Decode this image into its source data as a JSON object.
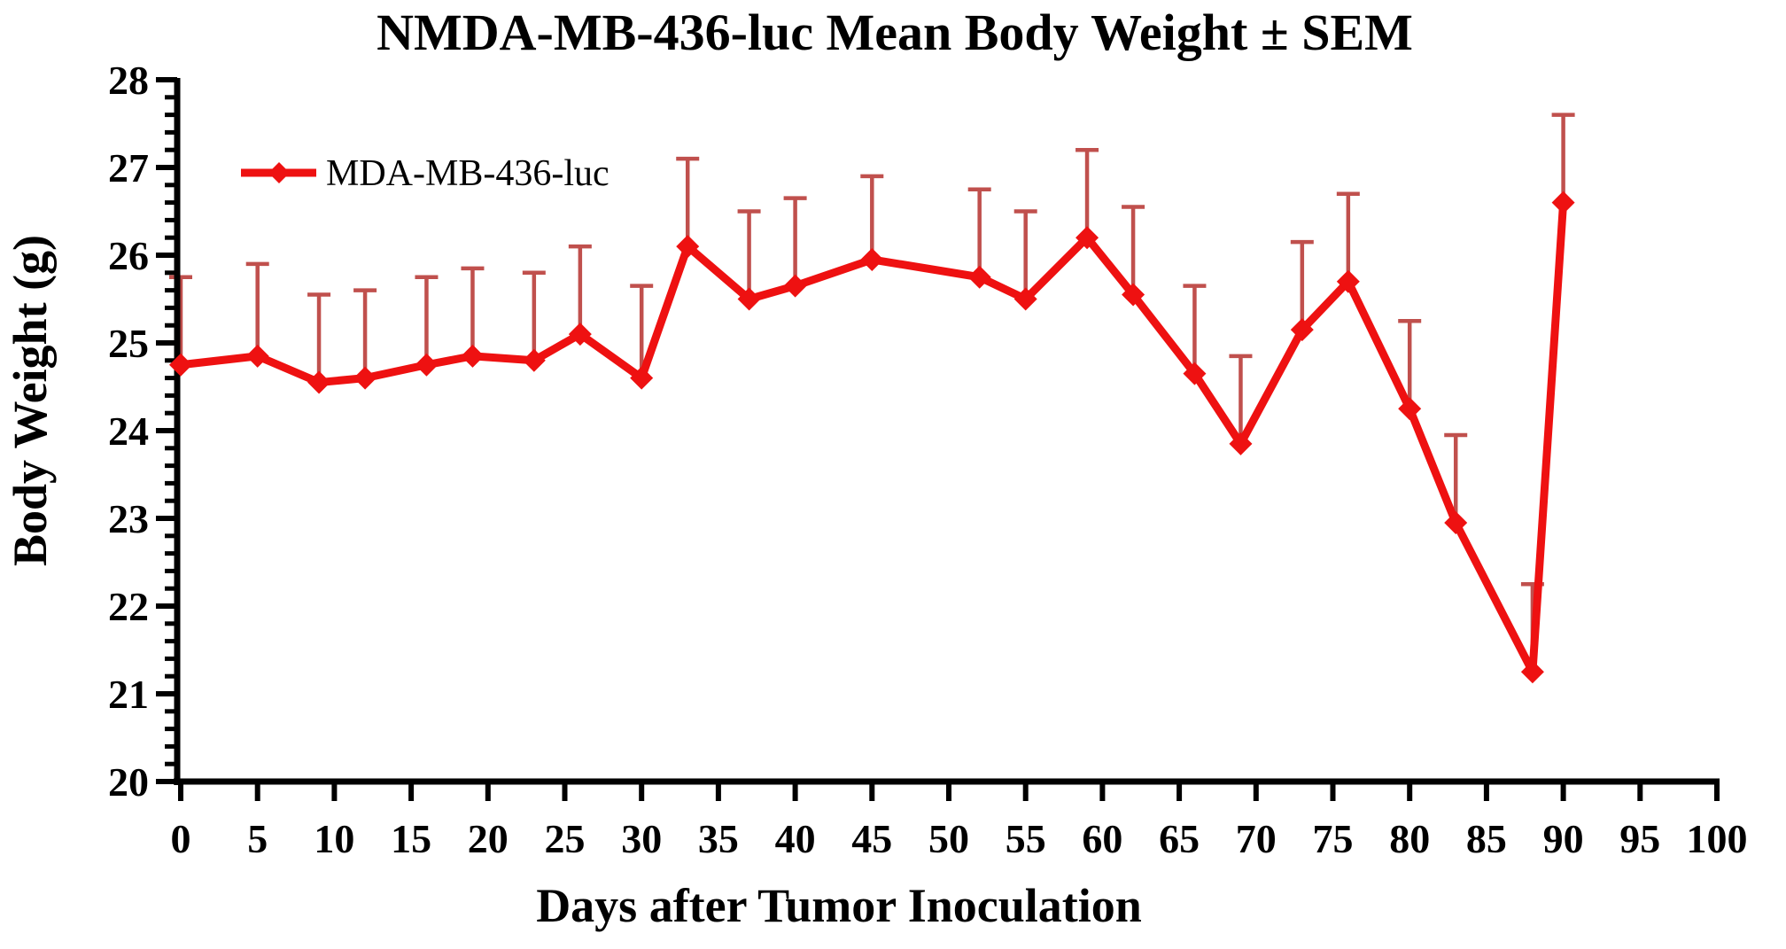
{
  "chart_data": {
    "type": "line",
    "title": "NMDA-MB-436-luc Mean Body Weight ± SEM",
    "xlabel": "Days after Tumor Inoculation",
    "ylabel": "Body Weight (g)",
    "legend": {
      "label": "MDA-MB-436-luc",
      "position": "top-left-inside",
      "marker": "diamond"
    },
    "xlim": [
      0,
      100
    ],
    "ylim": [
      20,
      28
    ],
    "x_ticks": [
      0,
      5,
      10,
      15,
      20,
      25,
      30,
      35,
      40,
      45,
      50,
      55,
      60,
      65,
      70,
      75,
      80,
      85,
      90,
      95,
      100
    ],
    "y_ticks": [
      20,
      21,
      22,
      23,
      24,
      25,
      26,
      27,
      28
    ],
    "y_minor_tick_step": 0.2,
    "grid": false,
    "error_bars": "upper SEM only",
    "series": [
      {
        "name": "MDA-MB-436-luc",
        "marker": "diamond",
        "x": [
          0,
          5,
          9,
          12,
          16,
          19,
          23,
          26,
          30,
          33,
          37,
          40,
          45,
          52,
          55,
          59,
          62,
          66,
          69,
          73,
          76,
          80,
          83,
          88,
          90
        ],
        "mean": [
          24.75,
          24.85,
          24.55,
          24.6,
          24.75,
          24.85,
          24.8,
          25.1,
          24.6,
          26.1,
          25.5,
          25.65,
          25.95,
          25.75,
          25.5,
          26.2,
          25.55,
          24.65,
          23.85,
          25.15,
          25.7,
          24.25,
          22.95,
          21.25,
          26.6
        ],
        "sem": [
          1.0,
          1.05,
          1.0,
          1.0,
          1.0,
          1.0,
          1.0,
          1.0,
          1.05,
          1.0,
          1.0,
          1.0,
          0.95,
          1.0,
          1.0,
          1.0,
          1.0,
          1.0,
          1.0,
          1.0,
          1.0,
          1.0,
          1.0,
          1.0,
          1.0
        ]
      }
    ],
    "colors": {
      "line": "#ee1111",
      "error_bar": "#c0504d",
      "axis": "#000000",
      "background": "#ffffff"
    }
  }
}
